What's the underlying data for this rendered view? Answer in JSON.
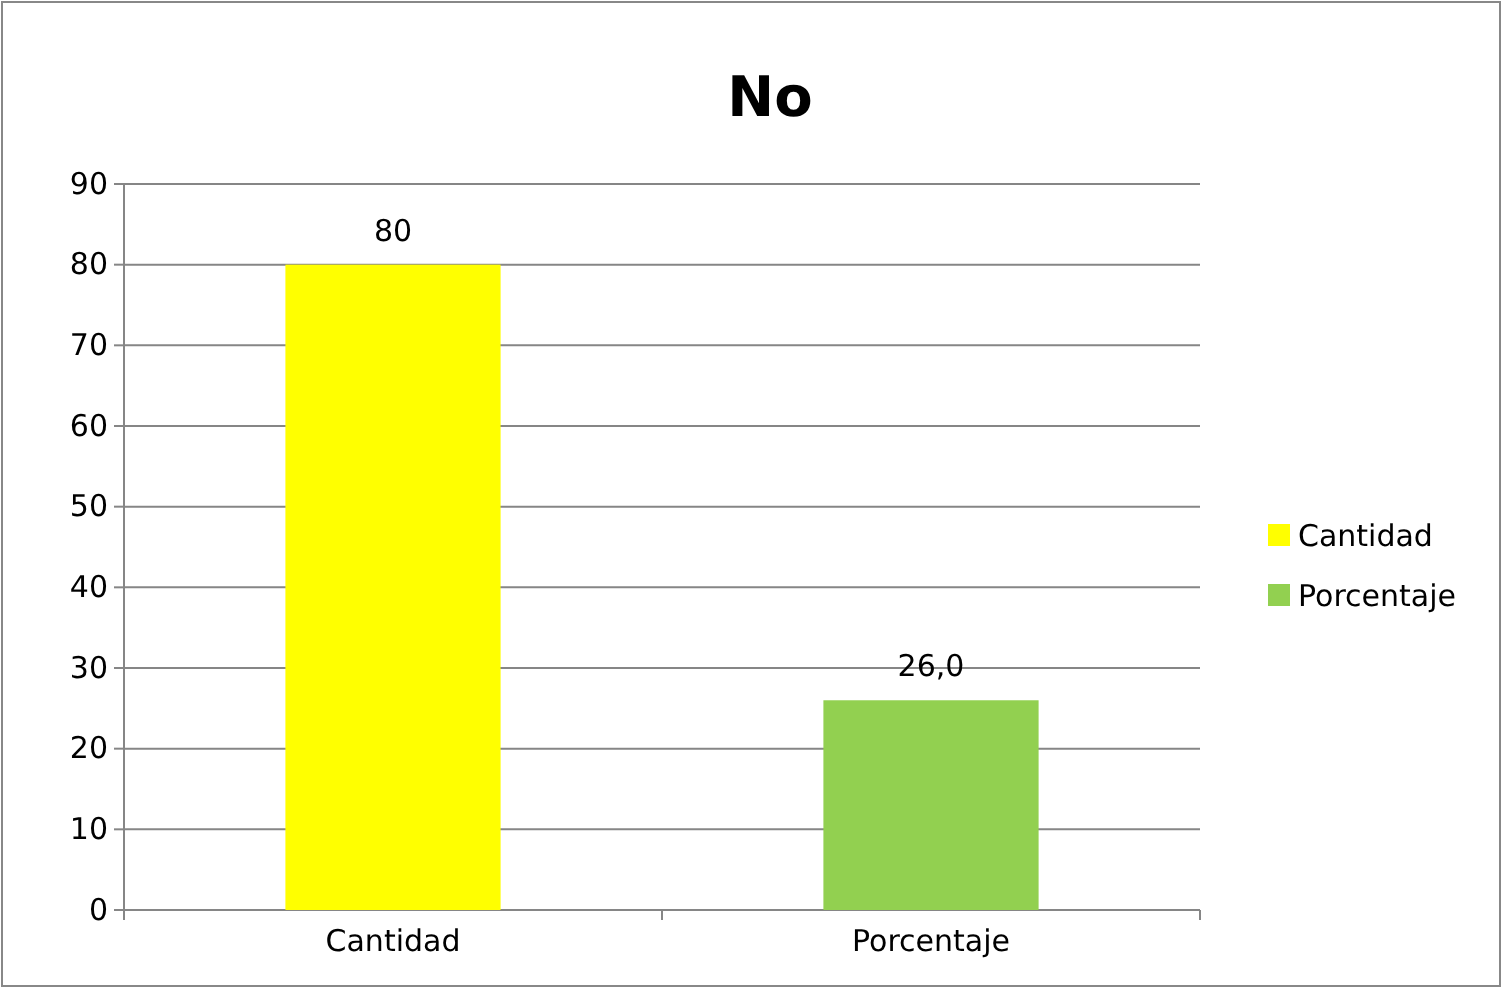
{
  "chart_data": {
    "type": "bar",
    "title": "No",
    "categories": [
      "Cantidad",
      "Porcentaje"
    ],
    "series": [
      {
        "name": "Cantidad",
        "color": "#ffff00",
        "values": [
          80,
          null
        ],
        "value_labels": [
          "80",
          null
        ]
      },
      {
        "name": "Porcentaje",
        "color": "#92d050",
        "values": [
          null,
          26.0
        ],
        "value_labels": [
          null,
          "26,0"
        ]
      }
    ],
    "ylim": [
      0,
      90
    ],
    "yticks": [
      0,
      10,
      20,
      30,
      40,
      50,
      60,
      70,
      80,
      90
    ],
    "grid": "y",
    "legend": "right"
  }
}
